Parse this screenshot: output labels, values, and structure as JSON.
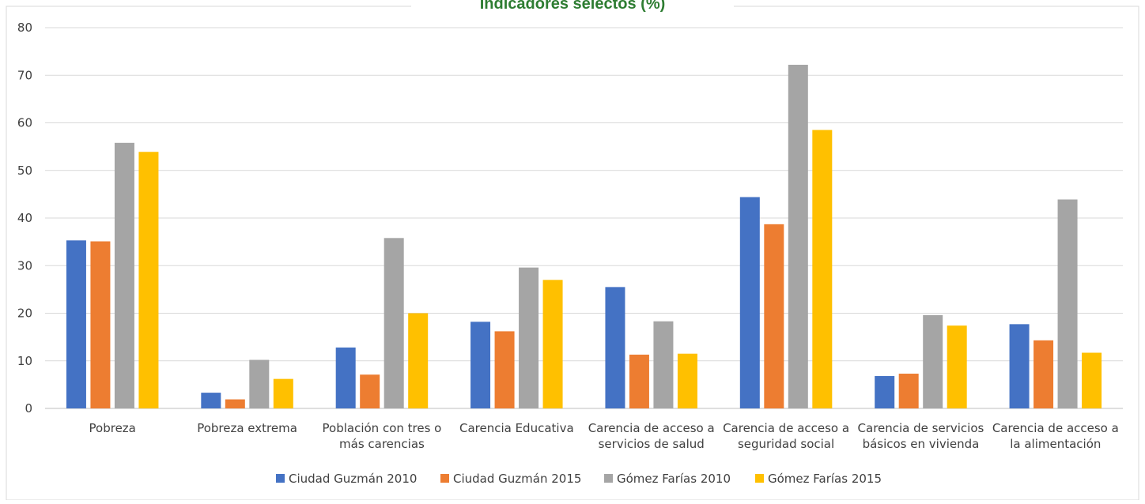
{
  "chart_data": {
    "type": "bar",
    "title": "Indicadores selectos (%)",
    "ylim": [
      0,
      80
    ],
    "yticks": [
      "0",
      "10",
      "20",
      "30",
      "40",
      "50",
      "60",
      "70",
      "80"
    ],
    "grid": true,
    "legend_position": "bottom",
    "categories": [
      "Pobreza",
      "Pobreza extrema",
      "Población con tres o más carencias",
      "Carencia Educativa",
      "Carencia de acceso a servicios de salud",
      "Carencia de acceso a seguridad social",
      "Carencia de servicios básicos en vivienda",
      "Carencia de acceso a la alimentación"
    ],
    "category_lines": [
      [
        "Pobreza"
      ],
      [
        "Pobreza extrema"
      ],
      [
        "Población con tres o",
        "más carencias"
      ],
      [
        "Carencia Educativa"
      ],
      [
        "Carencia de acceso a",
        "servicios de salud"
      ],
      [
        "Carencia de acceso a",
        "seguridad social"
      ],
      [
        "Carencia de servicios",
        "básicos en vivienda"
      ],
      [
        "Carencia de acceso a",
        "la alimentación"
      ]
    ],
    "series": [
      {
        "name": "Ciudad Guzmán 2010",
        "color": "#4472C4",
        "values": [
          35.3,
          3.3,
          12.8,
          18.2,
          25.5,
          44.4,
          6.8,
          17.7
        ]
      },
      {
        "name": "Ciudad Guzmán 2015",
        "color": "#ED7D31",
        "values": [
          35.1,
          1.9,
          7.1,
          16.2,
          11.3,
          38.7,
          7.3,
          14.3
        ]
      },
      {
        "name": "Gómez Farías 2010",
        "color": "#A5A5A5",
        "values": [
          55.8,
          10.2,
          35.8,
          29.6,
          18.3,
          72.2,
          19.6,
          43.9
        ]
      },
      {
        "name": "Gómez Farías 2015",
        "color": "#FFC000",
        "values": [
          53.9,
          6.2,
          20.0,
          27.0,
          11.5,
          58.5,
          17.4,
          11.7
        ]
      }
    ]
  },
  "colors": {
    "title": "#2E7D32",
    "grid": "#D9D9D9",
    "axis": "#BFBFBF",
    "text": "#404040"
  }
}
